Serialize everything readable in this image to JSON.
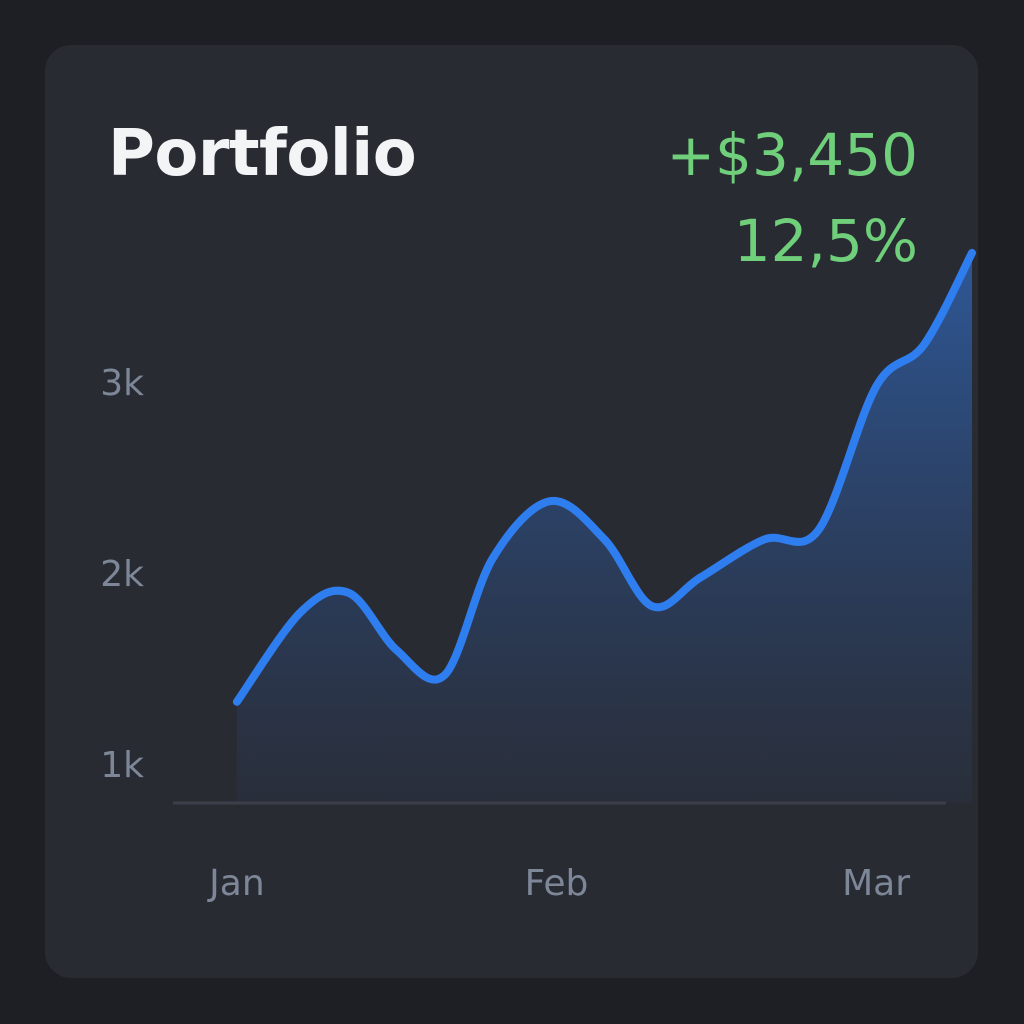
{
  "header": {
    "title": "Portfolio",
    "gain": "+$3,450",
    "gain_percent": "12,5%"
  },
  "colors": {
    "background": "#1e1f24",
    "card": "#292b33",
    "line": "#2f7ef0",
    "positive": "#6fcf7a",
    "tick_label": "#7d8798"
  },
  "chart_data": {
    "type": "area",
    "title": "",
    "xlabel": "",
    "ylabel": "",
    "x_ticks": [
      "Jan",
      "Feb",
      "Mar"
    ],
    "y_ticks": [
      {
        "value": 1000,
        "label": "1k"
      },
      {
        "value": 2000,
        "label": "2k"
      },
      {
        "value": 3000,
        "label": "3k"
      }
    ],
    "x": [
      0,
      0.2,
      0.35,
      0.5,
      0.65,
      0.8,
      0.98,
      1.15,
      1.3,
      1.45,
      1.65,
      1.82,
      2.0,
      2.15,
      2.3
    ],
    "values": [
      1330,
      1800,
      1900,
      1600,
      1470,
      2080,
      2380,
      2180,
      1830,
      1980,
      2180,
      2230,
      2980,
      3200,
      3680
    ],
    "ylim": [
      800,
      3800
    ],
    "xlim": [
      -0.2,
      2.3
    ],
    "grid": false,
    "legend": "none"
  }
}
